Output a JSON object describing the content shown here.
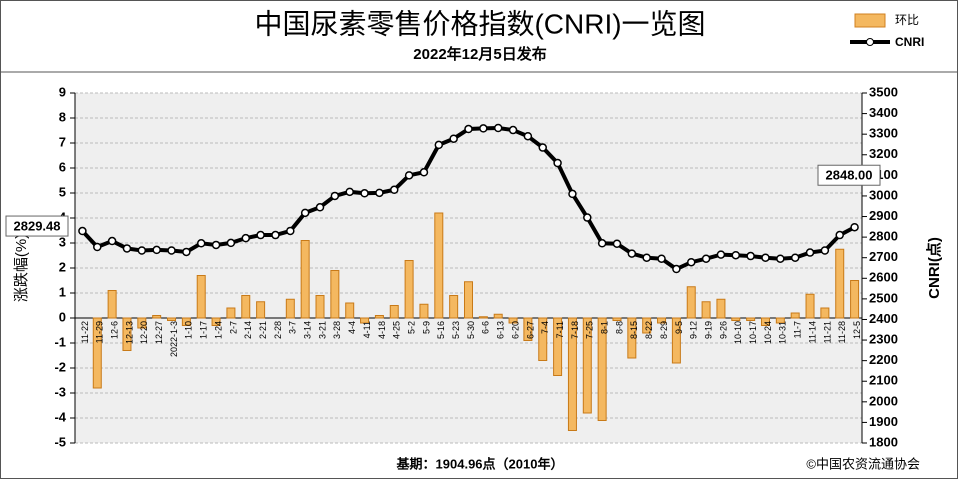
{
  "chart_data": {
    "type": "bar_line",
    "title": "中国尿素零售价格指数(CNRI)一览图",
    "subtitle": "2022年12月5日发布",
    "y_label": "涨跌幅(%)",
    "y2_label": "CNRI(点)",
    "footer": "基期：1904.96点（2010年）",
    "source": "©中国农资流通协会",
    "categories": [
      "11-22",
      "11-29",
      "12-6",
      "12-13",
      "12-20",
      "12-27",
      "2022-1-3",
      "1-10",
      "1-17",
      "1-24",
      "2-7",
      "2-14",
      "2-21",
      "2-28",
      "3-7",
      "3-14",
      "3-21",
      "3-28",
      "4-4",
      "4-11",
      "4-18",
      "4-25",
      "5-2",
      "5-9",
      "5-16",
      "5-23",
      "5-30",
      "6-6",
      "6-13",
      "6-20",
      "6-27",
      "7-4",
      "7-11",
      "7-18",
      "7-25",
      "8-1",
      "8-8",
      "8-15",
      "8-22",
      "8-29",
      "9-5",
      "9-12",
      "9-19",
      "9-26",
      "10-10",
      "10-17",
      "10-24",
      "10-31",
      "11-7",
      "11-14",
      "11-21",
      "11-28",
      "12-5"
    ],
    "series": [
      {
        "name": "环比",
        "color": "#f4b860",
        "values": [
          null,
          -2.8,
          1.1,
          -1.3,
          -0.4,
          0.1,
          -0.1,
          -0.3,
          1.7,
          -0.3,
          0.4,
          0.9,
          0.65,
          0,
          0.75,
          3.1,
          0.9,
          1.9,
          0.6,
          -0.2,
          0.1,
          0.5,
          2.3,
          0.55,
          4.2,
          0.9,
          1.45,
          0.05,
          0.15,
          -0.2,
          -0.9,
          -1.7,
          -2.3,
          -4.5,
          -3.8,
          -4.1,
          -0.1,
          -1.6,
          -0.6,
          -0.2,
          -1.8,
          1.25,
          0.65,
          0.75,
          -0.1,
          -0.1,
          -0.3,
          -0.2,
          0.2,
          0.95,
          0.4,
          2.75,
          1.5
        ]
      },
      {
        "name": "CNRI",
        "color": "#000000",
        "axis": "y2",
        "values": [
          2829.48,
          2752,
          2781,
          2745,
          2735,
          2738,
          2735,
          2728,
          2770,
          2762,
          2772,
          2795,
          2810,
          2810,
          2830,
          2918,
          2945,
          3000,
          3020,
          3013,
          3015,
          3030,
          3100,
          3115,
          3248,
          3278,
          3325,
          3328,
          3330,
          3320,
          3290,
          3235,
          3160,
          3010,
          2895,
          2770,
          2768,
          2720,
          2700,
          2695,
          2645,
          2678,
          2695,
          2715,
          2712,
          2708,
          2700,
          2695,
          2700,
          2725,
          2735,
          2810,
          2848
        ],
        "value_labels": [
          "2829.48",
          null,
          null,
          null,
          null,
          null,
          null,
          null,
          null,
          null,
          null,
          null,
          null,
          null,
          null,
          null,
          null,
          null,
          null,
          null,
          null,
          null,
          null,
          null,
          null,
          null,
          null,
          null,
          null,
          null,
          null,
          null,
          null,
          null,
          null,
          null,
          null,
          null,
          null,
          null,
          null,
          null,
          null,
          null,
          null,
          null,
          null,
          null,
          null,
          null,
          null,
          null,
          "2848.00"
        ]
      }
    ],
    "ylim": [
      -5,
      9
    ],
    "yticks": [
      -5,
      -4,
      -3,
      -2,
      -1,
      0,
      1,
      2,
      3,
      4,
      5,
      6,
      7,
      8,
      9
    ],
    "y2lim": [
      1800,
      3500
    ],
    "y2ticks": [
      1800,
      1900,
      2000,
      2100,
      2200,
      2300,
      2400,
      2500,
      2600,
      2700,
      2800,
      2900,
      3000,
      3100,
      3200,
      3300,
      3400,
      3500
    ],
    "grid": true,
    "legend": "upper right"
  }
}
